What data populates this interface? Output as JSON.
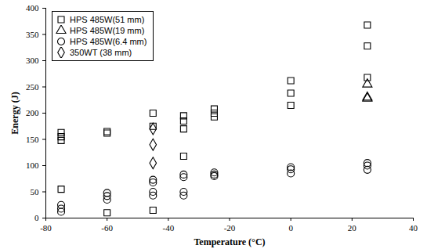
{
  "chart_data": {
    "type": "scatter",
    "x_label": "Temperature (°C)",
    "y_label": "Energy (J)",
    "xlim": [
      -80,
      40
    ],
    "xticks": [
      -80,
      -60,
      -40,
      -20,
      0,
      20,
      40
    ],
    "ylim": [
      0,
      400
    ],
    "yticks": [
      0,
      50,
      100,
      150,
      200,
      250,
      300,
      350,
      400
    ],
    "grid": false,
    "legend": "top-left",
    "series": [
      {
        "name": "HPS 485W(51 mm)",
        "color": "#000000",
        "marker": "square",
        "x": [
          -75,
          -75,
          -75,
          -75,
          -60,
          -60,
          -60,
          -45,
          -45,
          -45,
          -35,
          -35,
          -35,
          -35,
          -25,
          -25,
          -25,
          0,
          0,
          0,
          25,
          25,
          25
        ],
        "values": [
          163,
          155,
          148,
          55,
          165,
          162,
          10,
          200,
          175,
          15,
          195,
          185,
          170,
          118,
          208,
          200,
          193,
          262,
          238,
          215,
          368,
          328,
          268
        ]
      },
      {
        "name": "HPS 485W(19 mm)",
        "color": "#000000",
        "marker": "triangle",
        "x": [
          25,
          25,
          25
        ],
        "values": [
          255,
          230,
          228
        ]
      },
      {
        "name": "HPS 485W(6.4 mm)",
        "color": "#000000",
        "marker": "circle",
        "x": [
          -75,
          -75,
          -75,
          -60,
          -60,
          -60,
          -45,
          -45,
          -45,
          -45,
          -35,
          -35,
          -35,
          -35,
          -25,
          -25,
          -25,
          0,
          0,
          0,
          25,
          25,
          25
        ],
        "values": [
          25,
          18,
          12,
          48,
          42,
          35,
          73,
          68,
          50,
          43,
          83,
          78,
          50,
          43,
          87,
          83,
          80,
          97,
          93,
          85,
          105,
          100,
          92
        ]
      },
      {
        "name": "350WT (38 mm)",
        "color": "#000000",
        "marker": "diamond",
        "x": [
          -45,
          -45,
          -45
        ],
        "values": [
          170,
          140,
          105
        ]
      }
    ]
  }
}
